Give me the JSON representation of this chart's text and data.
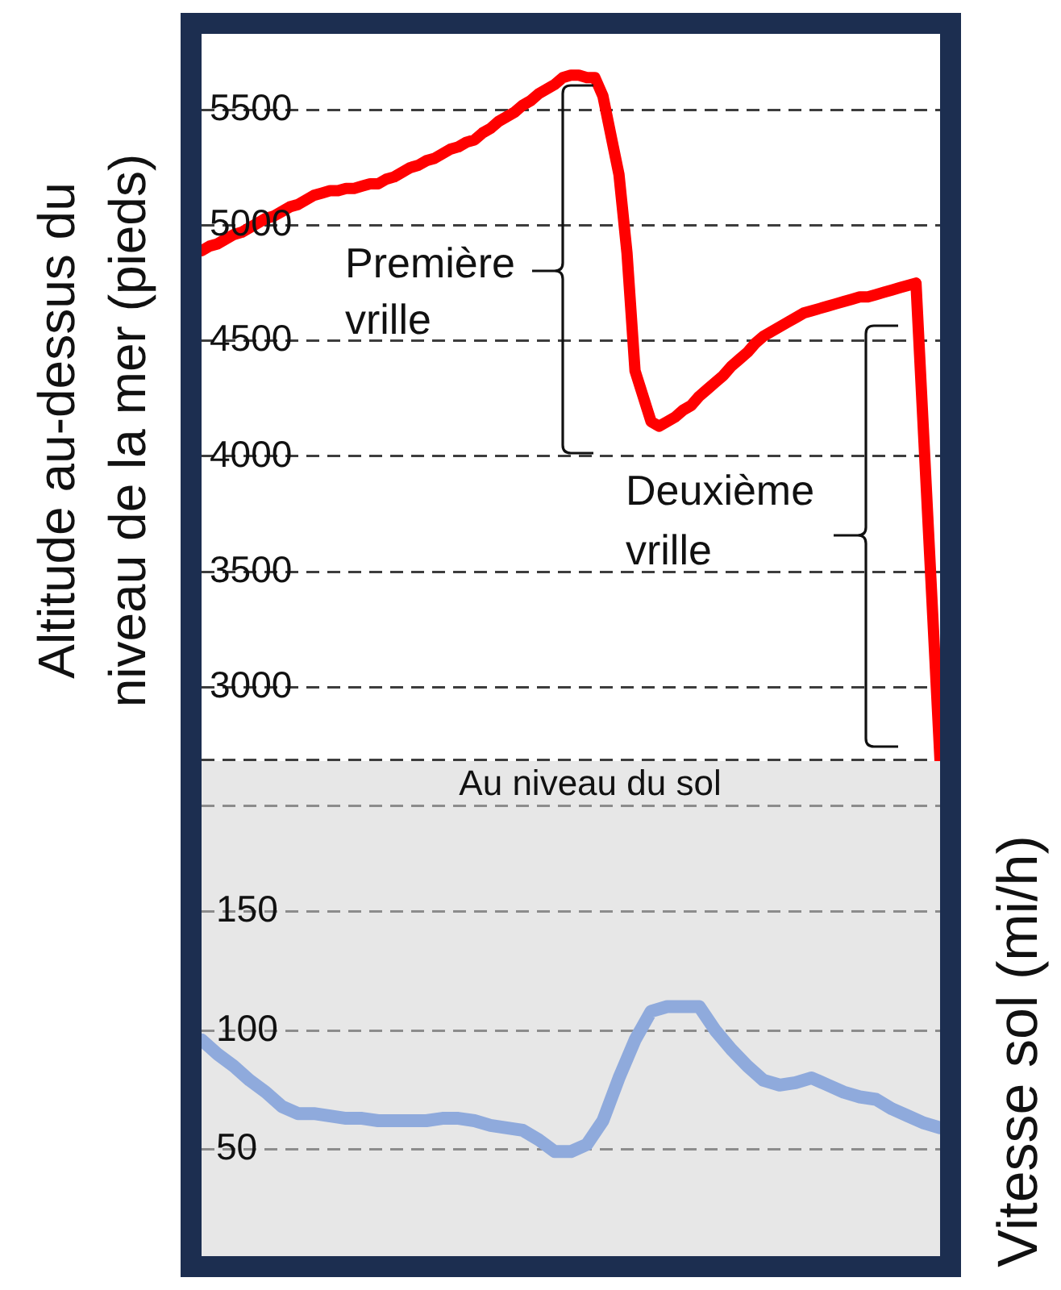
{
  "chart_data": [
    {
      "type": "line",
      "ylabel": "Altitude au-dessus du niveau de la mer (pieds)",
      "categories": [
        null,
        null,
        null,
        null,
        null,
        null,
        null,
        null,
        null,
        null,
        null,
        null,
        null,
        null,
        null,
        null,
        null,
        null,
        null,
        null,
        null,
        null,
        null,
        null,
        null,
        null,
        null,
        null,
        null,
        null,
        null,
        null,
        null,
        null,
        null,
        null,
        null,
        null,
        null,
        null,
        null,
        null,
        null,
        null,
        null,
        null,
        null,
        null,
        null,
        null,
        null,
        null,
        null,
        null,
        null,
        null,
        null,
        null,
        null,
        null,
        null,
        null,
        null,
        null,
        null,
        null,
        null,
        null,
        null,
        null,
        null,
        null,
        null,
        null,
        null,
        null,
        null,
        null,
        null,
        null,
        null,
        null,
        null,
        null,
        null,
        null,
        null,
        null,
        null,
        null,
        null,
        null,
        null
      ],
      "values": [
        4890,
        4910,
        4920,
        4940,
        4960,
        4970,
        4990,
        5010,
        5030,
        5040,
        5060,
        5080,
        5090,
        5110,
        5130,
        5140,
        5150,
        5150,
        5160,
        5160,
        5170,
        5180,
        5180,
        5200,
        5210,
        5230,
        5250,
        5260,
        5280,
        5290,
        5310,
        5330,
        5340,
        5360,
        5370,
        5400,
        5420,
        5450,
        5470,
        5490,
        5520,
        5540,
        5570,
        5590,
        5610,
        5640,
        5650,
        5650,
        5640,
        5640,
        5560,
        5390,
        5220,
        4880,
        4370,
        4260,
        4150,
        4130,
        4150,
        4170,
        4200,
        4220,
        4260,
        4290,
        4320,
        4350,
        4390,
        4420,
        4450,
        4490,
        4520,
        4540,
        4560,
        4580,
        4600,
        4620,
        4630,
        4640,
        4650,
        4660,
        4670,
        4680,
        4690,
        4690,
        4700,
        4710,
        4720,
        4730,
        4740,
        4750,
        4060,
        3370,
        2680
      ],
      "color": "#ff0000",
      "ylim": [
        2680,
        5920
      ],
      "yticks": [
        3000,
        3500,
        4000,
        4500,
        5000,
        5500
      ],
      "grid": "y",
      "tick_labels": "y",
      "annotations": [
        "Première vrille",
        "Deuxième vrille"
      ]
    },
    {
      "type": "line",
      "ylabel": "Vitesse sol (mi/h)",
      "categories": [
        null,
        null,
        null,
        null,
        null,
        null,
        null,
        null,
        null,
        null,
        null,
        null,
        null,
        null,
        null,
        null,
        null,
        null,
        null,
        null,
        null,
        null,
        null,
        null,
        null,
        null,
        null,
        null,
        null,
        null,
        null,
        null,
        null,
        null,
        null,
        null,
        null,
        null,
        null,
        null,
        null,
        null,
        null,
        null,
        null,
        null,
        null
      ],
      "values": [
        96,
        90,
        85,
        79,
        74,
        68,
        65,
        65,
        64,
        63,
        63,
        62,
        62,
        62,
        62,
        63,
        63,
        62,
        60,
        59,
        58,
        54,
        49,
        49,
        52,
        62,
        80,
        96,
        108,
        110,
        110,
        110,
        100,
        92,
        85,
        79,
        77,
        78,
        80,
        77,
        74,
        72,
        71,
        67,
        64,
        61,
        59
      ],
      "color": "#8faadc",
      "ylim": [
        5,
        195
      ],
      "yticks": [
        50,
        100,
        150
      ],
      "grid": "y",
      "tick_labels": "y",
      "annotations": [
        "Au niveau du sol"
      ]
    }
  ]
}
